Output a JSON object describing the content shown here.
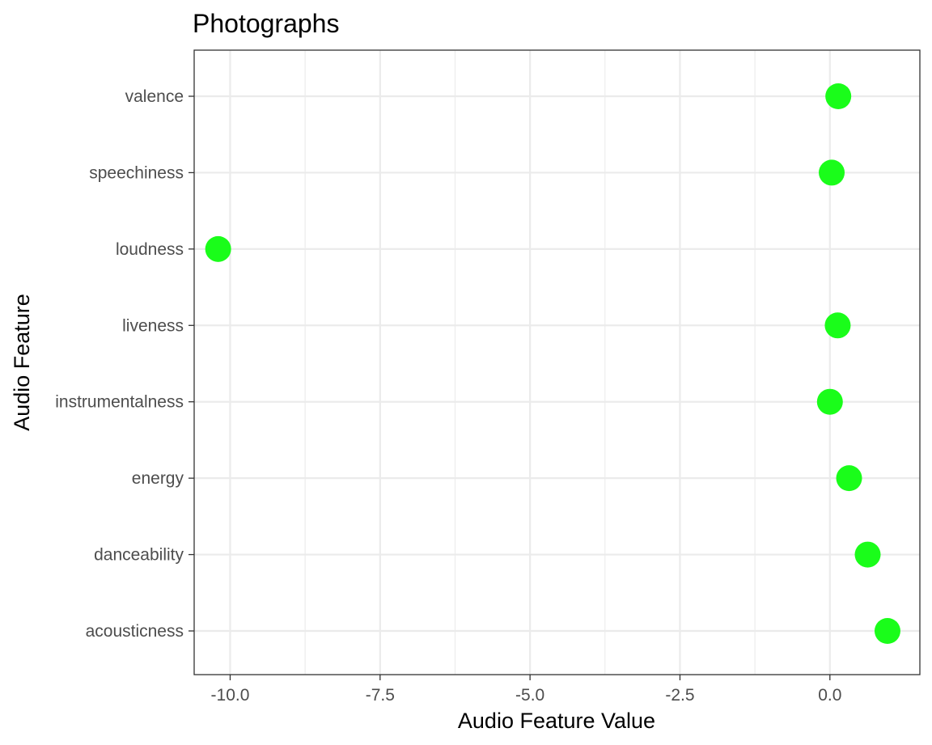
{
  "chart_data": {
    "type": "scatter",
    "title": "Photographs",
    "xlabel": "Audio Feature Value",
    "ylabel": "Audio Feature",
    "xlim": [
      -10.6,
      1.5
    ],
    "x_ticks": [
      -10.0,
      -7.5,
      -5.0,
      -2.5,
      0.0
    ],
    "x_tick_labels": [
      "-10.0",
      "-7.5",
      "-5.0",
      "-2.5",
      "0.0"
    ],
    "categories": [
      "acousticness",
      "danceability",
      "energy",
      "instrumentalness",
      "liveness",
      "loudness",
      "speechiness",
      "valence"
    ],
    "values": [
      0.96,
      0.63,
      0.32,
      0.0,
      0.13,
      -10.2,
      0.03,
      0.14
    ],
    "grid": true,
    "legend": "none",
    "point_color": "#1afd1a",
    "grid_color": "#ebebeb",
    "panel_border_color": "#333333"
  }
}
